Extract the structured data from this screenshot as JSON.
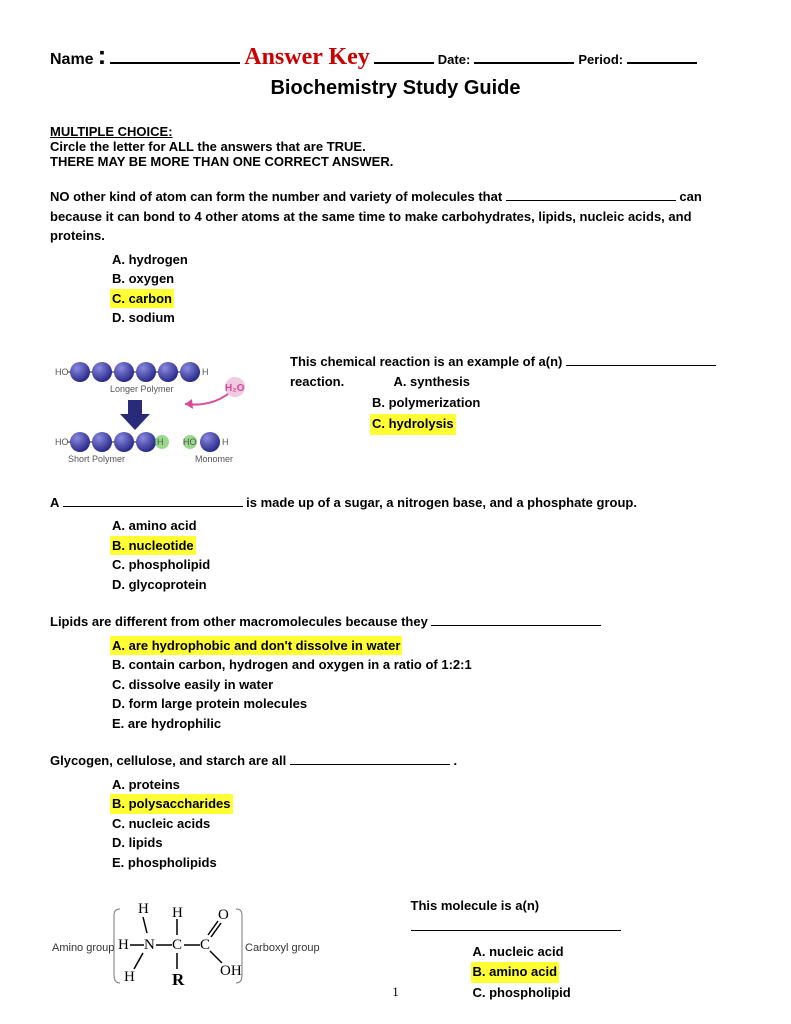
{
  "header": {
    "name_label": "Name",
    "colon": ":",
    "answer_key": "Answer Key",
    "date_label": "Date:",
    "period_label": "Period:",
    "blank_widths": {
      "name": 130,
      "after_key": 60,
      "date": 100,
      "period": 70
    }
  },
  "title": "Biochemistry Study Guide",
  "instructions": {
    "section_head": "MULTIPLE CHOICE:",
    "line1": "Circle the letter for ALL the answers that are TRUE.",
    "line2": "THERE MAY BE MORE THAN ONE CORRECT ANSWER."
  },
  "q1": {
    "text_before": "NO other kind of atom can form the number and variety of molecules that ",
    "blank_width": 170,
    "text_after": " can because it can bond to 4 other atoms at the same time to make carbohydrates, lipids, nucleic acids, and proteins.",
    "choices": [
      {
        "label": "A. hydrogen",
        "hl": false
      },
      {
        "label": "B. oxygen",
        "hl": false
      },
      {
        "label": "C. carbon",
        "hl": true
      },
      {
        "label": "D. sodium",
        "hl": false
      }
    ]
  },
  "q2": {
    "diagram": {
      "bead_color": "#3a3a9e",
      "bead_highlight": "#6a6ad8",
      "bond_color": "#888",
      "ho_color": "#555",
      "h2o_text": "H₂O",
      "h2o_color": "#d94a9a",
      "arrow_color": "#2a2a7a",
      "long_label": "Longer Polymer",
      "short_label": "Short Polymer",
      "monomer_label": "Monomer",
      "glow_green": "#6ec95a"
    },
    "text_before": "This chemical reaction is an example of a(n) ",
    "blank_width": 150,
    "text_after": " reaction.",
    "choices": [
      {
        "label": "A. synthesis",
        "hl": false
      },
      {
        "label": "B. polymerization",
        "hl": false
      },
      {
        "label": "C. hydrolysis",
        "hl": true
      }
    ]
  },
  "q3": {
    "text_before": "A ",
    "blank_width": 180,
    "text_after": " is made up of a sugar, a nitrogen base, and a phosphate group.",
    "choices": [
      {
        "label": "A. amino acid",
        "hl": false
      },
      {
        "label": "B. nucleotide",
        "hl": true
      },
      {
        "label": "C. phospholipid",
        "hl": false
      },
      {
        "label": "D. glycoprotein",
        "hl": false
      }
    ]
  },
  "q4": {
    "text_before": "Lipids are different from other macromolecules because they ",
    "blank_width": 170,
    "choices": [
      {
        "label": "A. are hydrophobic and don't dissolve in water",
        "hl": true
      },
      {
        "label": "B. contain carbon, hydrogen and oxygen in a ratio of 1:2:1",
        "hl": false
      },
      {
        "label": "C. dissolve easily in water",
        "hl": false
      },
      {
        "label": "D. form large protein molecules",
        "hl": false
      },
      {
        "label": "E. are hydrophilic",
        "hl": false
      }
    ]
  },
  "q5": {
    "text_before": "Glycogen, cellulose, and starch are all ",
    "blank_width": 160,
    "text_after": ".",
    "choices": [
      {
        "label": "A. proteins",
        "hl": false
      },
      {
        "label": "B. polysaccharides",
        "hl": true
      },
      {
        "label": "C. nucleic acids",
        "hl": false
      },
      {
        "label": "D. lipids",
        "hl": false
      },
      {
        "label": "E. phospholipids",
        "hl": false
      }
    ]
  },
  "q6": {
    "diagram": {
      "amino_label": "Amino group",
      "carboxyl_label": "Carboxyl group",
      "atoms": {
        "H": "H",
        "N": "N",
        "C": "C",
        "O": "O",
        "OH": "OH",
        "R": "R"
      }
    },
    "text_before": "This molecule is a(n) ",
    "blank_width": 210,
    "choices": [
      {
        "label": "A. nucleic acid",
        "hl": false
      },
      {
        "label": "B. amino acid",
        "hl": true
      },
      {
        "label": "C. phospholipid",
        "hl": false
      }
    ]
  },
  "page_number": "1",
  "highlight_color": "#ffff33"
}
